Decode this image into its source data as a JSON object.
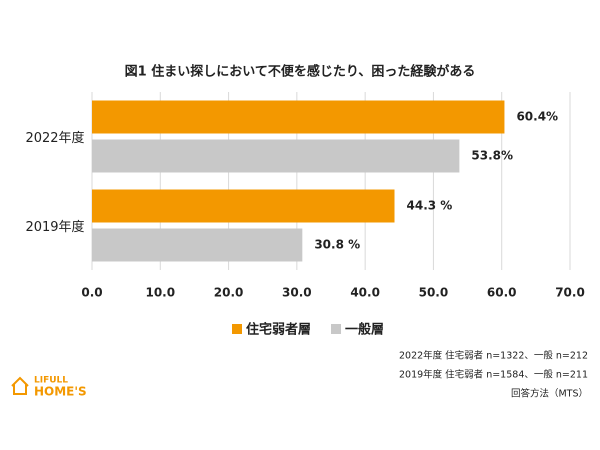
{
  "chart_data": {
    "type": "bar",
    "orientation": "horizontal",
    "title": "図1 住まい探しにおいて不便を感じたり、困った経験がある",
    "categories": [
      "2022年度",
      "2019年度"
    ],
    "series": [
      {
        "name": "住宅弱者層",
        "color": "#f39800",
        "values": [
          60.4,
          44.3
        ],
        "value_labels": [
          "60.4%",
          "44.3 %"
        ]
      },
      {
        "name": "一般層",
        "color": "#c8c8c8",
        "values": [
          53.8,
          30.8
        ],
        "value_labels": [
          "53.8%",
          "30.8 %"
        ]
      }
    ],
    "xlim": [
      0,
      70
    ],
    "xticks": [
      {
        "value": 0,
        "label": "0.0"
      },
      {
        "value": 10,
        "label": "10.0"
      },
      {
        "value": 20,
        "label": "20.0"
      },
      {
        "value": 30,
        "label": "30.0"
      },
      {
        "value": 40,
        "label": "40.0"
      },
      {
        "value": 50,
        "label": "50.0"
      },
      {
        "value": 60,
        "label": "60.0"
      },
      {
        "value": 70,
        "label": "70.0"
      }
    ],
    "grid": true,
    "notes": [
      "2022年度 住宅弱者 n=1322、一般 n=212",
      "2019年度 住宅弱者 n=1584、一般 n=211",
      "回答方法（MTS）"
    ]
  },
  "logo": {
    "top": "LIFULL",
    "bottom": "HOME'S"
  }
}
